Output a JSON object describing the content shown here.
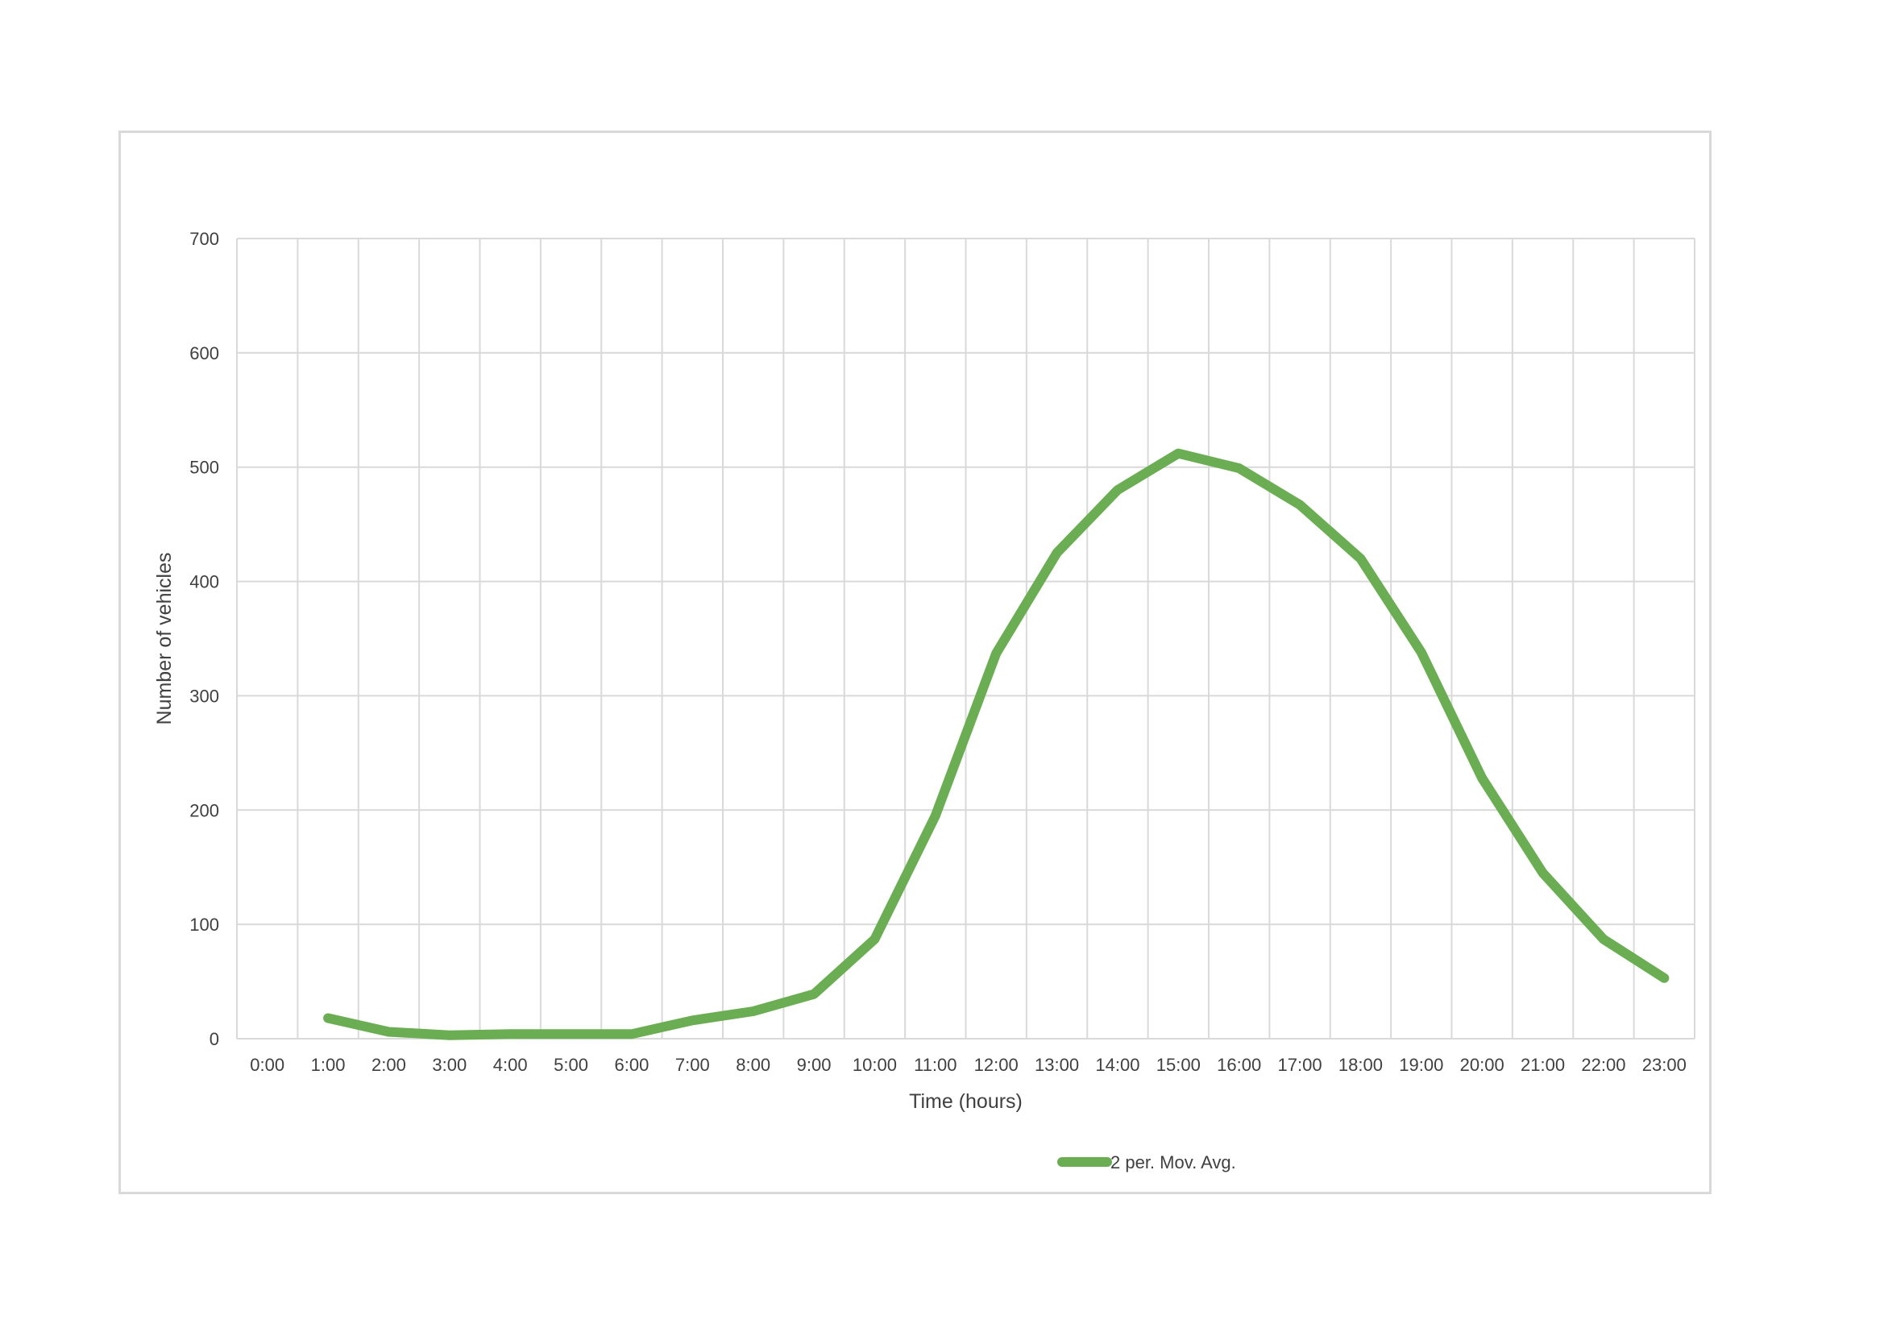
{
  "chart_data": {
    "type": "line",
    "title": "",
    "xlabel": "Time (hours)",
    "ylabel": "Number of vehicles",
    "ylim": [
      0,
      700
    ],
    "yticks": [
      "0",
      "100",
      "200",
      "300",
      "400",
      "500",
      "600",
      "700"
    ],
    "categories": [
      "0:00",
      "1:00",
      "2:00",
      "3:00",
      "4:00",
      "5:00",
      "6:00",
      "7:00",
      "8:00",
      "9:00",
      "10:00",
      "11:00",
      "12:00",
      "13:00",
      "14:00",
      "15:00",
      "16:00",
      "17:00",
      "18:00",
      "19:00",
      "20:00",
      "21:00",
      "22:00",
      "23:00"
    ],
    "grid": true,
    "legend_position": "bottom",
    "series": [
      {
        "name": "2 per. Mov. Avg.",
        "color": "#6aad52",
        "values": [
          null,
          18,
          6,
          3,
          4,
          4,
          4,
          16,
          24,
          39,
          87,
          195,
          337,
          425,
          480,
          512,
          499,
          467,
          420,
          338,
          228,
          145,
          87,
          53
        ]
      }
    ]
  }
}
